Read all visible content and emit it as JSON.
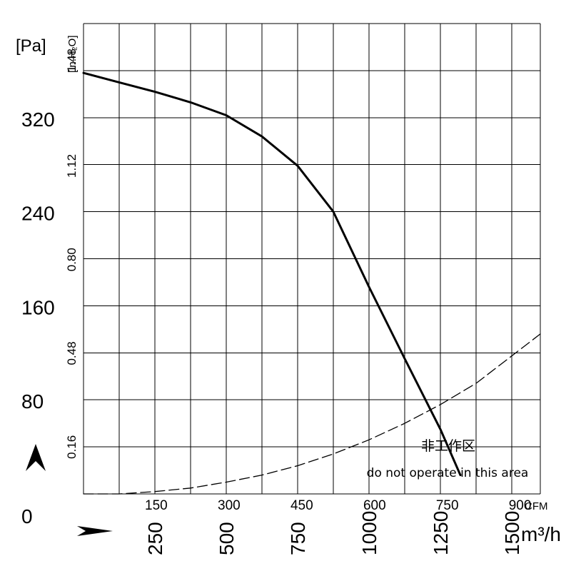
{
  "chart_data": {
    "type": "line",
    "title": "",
    "y_left_unit": "[Pa]",
    "y_inner_unit": "[in.H₂O]",
    "x_top_unit": "CFM",
    "x_bottom_unit": "m³/h",
    "y_left_ticks": [
      "0",
      "80",
      "160",
      "240",
      "320"
    ],
    "y_left_tick_values": [
      0,
      80,
      160,
      240,
      320
    ],
    "y_inner_ticks": [
      "0.16",
      "0.48",
      "0.80",
      "1.12",
      "1.48"
    ],
    "y_inner_tick_values": [
      0.16,
      0.48,
      0.8,
      1.12,
      1.48
    ],
    "x_top_ticks": [
      "150",
      "300",
      "450",
      "600",
      "750",
      "900"
    ],
    "x_top_tick_values": [
      150,
      300,
      450,
      600,
      750,
      900
    ],
    "x_bottom_ticks": [
      "250",
      "500",
      "750",
      "1000",
      "1250",
      "1500"
    ],
    "x_bottom_tick_values": [
      250,
      500,
      750,
      1000,
      1250,
      1500
    ],
    "xlim": [
      0,
      1600
    ],
    "ylim": [
      0,
      400
    ],
    "grid": true,
    "series": [
      {
        "style": "solid",
        "x": [
          0,
          125,
          250,
          375,
          500,
          625,
          750,
          875,
          1000,
          1125,
          1250,
          1320
        ],
        "y": [
          358,
          350,
          342,
          333,
          322,
          304,
          279,
          240,
          176,
          115,
          55,
          16
        ]
      },
      {
        "style": "dashed",
        "x": [
          1230,
          1260,
          1290,
          1320
        ],
        "y": [
          64,
          49,
          33,
          16
        ]
      },
      {
        "style": "dashed",
        "x": [
          0,
          125,
          250,
          375,
          500,
          625,
          750,
          875,
          1000,
          1125,
          1250,
          1375,
          1600
        ],
        "y": [
          0,
          0,
          2,
          5,
          10,
          16,
          24,
          34,
          46,
          60,
          76,
          94,
          136
        ]
      }
    ],
    "annotations": [
      "非工作区",
      "do not operate in this area"
    ]
  },
  "axis_arrows": [
    "y-axis-arrow-icon",
    "x-axis-arrow-icon"
  ]
}
